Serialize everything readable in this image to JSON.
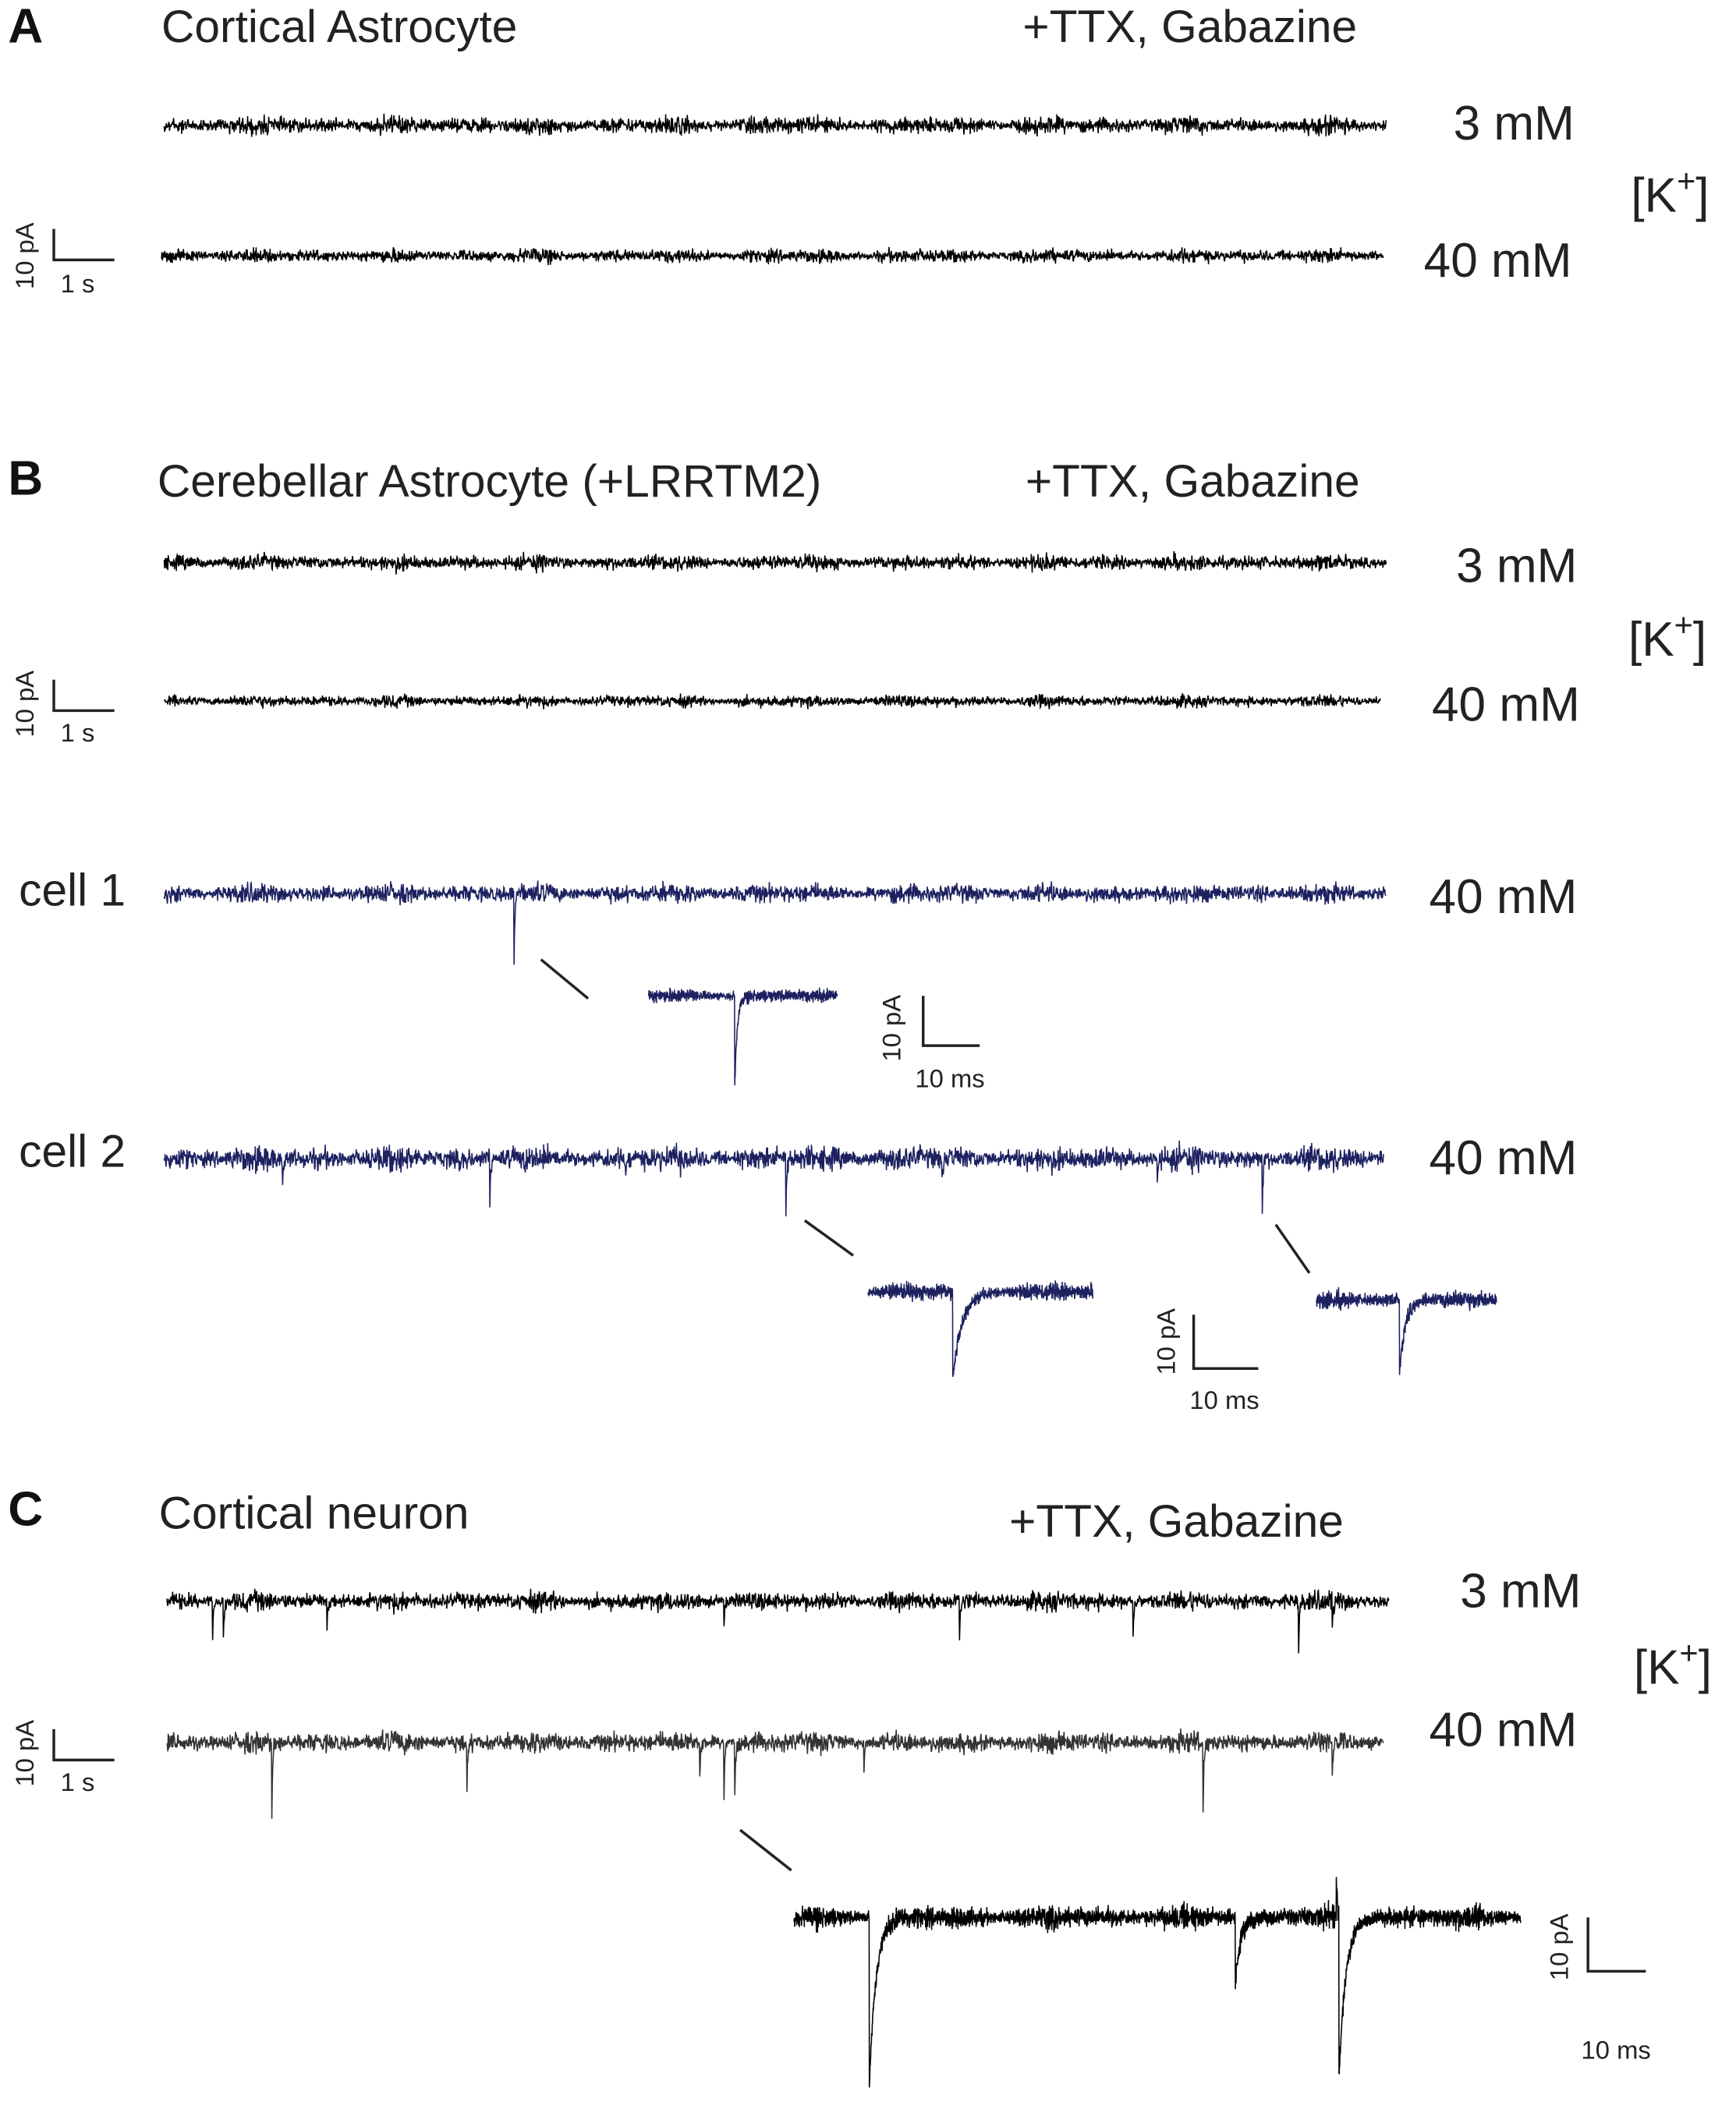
{
  "panels": [
    {
      "label": "A",
      "title": "Cortical Astrocyte",
      "condition": "+TTX, Gabazine",
      "traces": [
        {
          "concentration": "3 mM"
        },
        {
          "concentration": "40 mM"
        }
      ],
      "ion_label": {
        "open": "[K",
        "charge": "+",
        "close": "]"
      },
      "scale_bar": {
        "current": "10 pA",
        "time": "1 s"
      }
    },
    {
      "label": "B",
      "title": "Cerebellar Astrocyte (+LRRTM2)",
      "condition": "+TTX, Gabazine",
      "traces": [
        {
          "concentration": "3 mM"
        },
        {
          "concentration": "40 mM"
        }
      ],
      "ion_label": {
        "open": "[K",
        "charge": "+",
        "close": "]"
      },
      "scale_bar": {
        "current": "10 pA",
        "time": "1 s"
      },
      "cells": [
        {
          "name": "cell 1",
          "concentration": "40 mM",
          "inset_scale_bar": {
            "current": "10 pA",
            "time": "10 ms"
          }
        },
        {
          "name": "cell 2",
          "concentration": "40 mM",
          "inset_scale_bar": {
            "current": "10 pA",
            "time": "10 ms"
          }
        }
      ]
    },
    {
      "label": "C",
      "title": "Cortical neuron",
      "condition": "+TTX, Gabazine",
      "traces": [
        {
          "concentration": "3 mM"
        },
        {
          "concentration": "40 mM"
        }
      ],
      "ion_label": {
        "open": "[K",
        "charge": "+",
        "close": "]"
      },
      "scale_bar": {
        "current": "10 pA",
        "time": "1 s"
      },
      "inset_scale_bar": {
        "current": "10 pA",
        "time": "10 ms"
      }
    }
  ]
}
